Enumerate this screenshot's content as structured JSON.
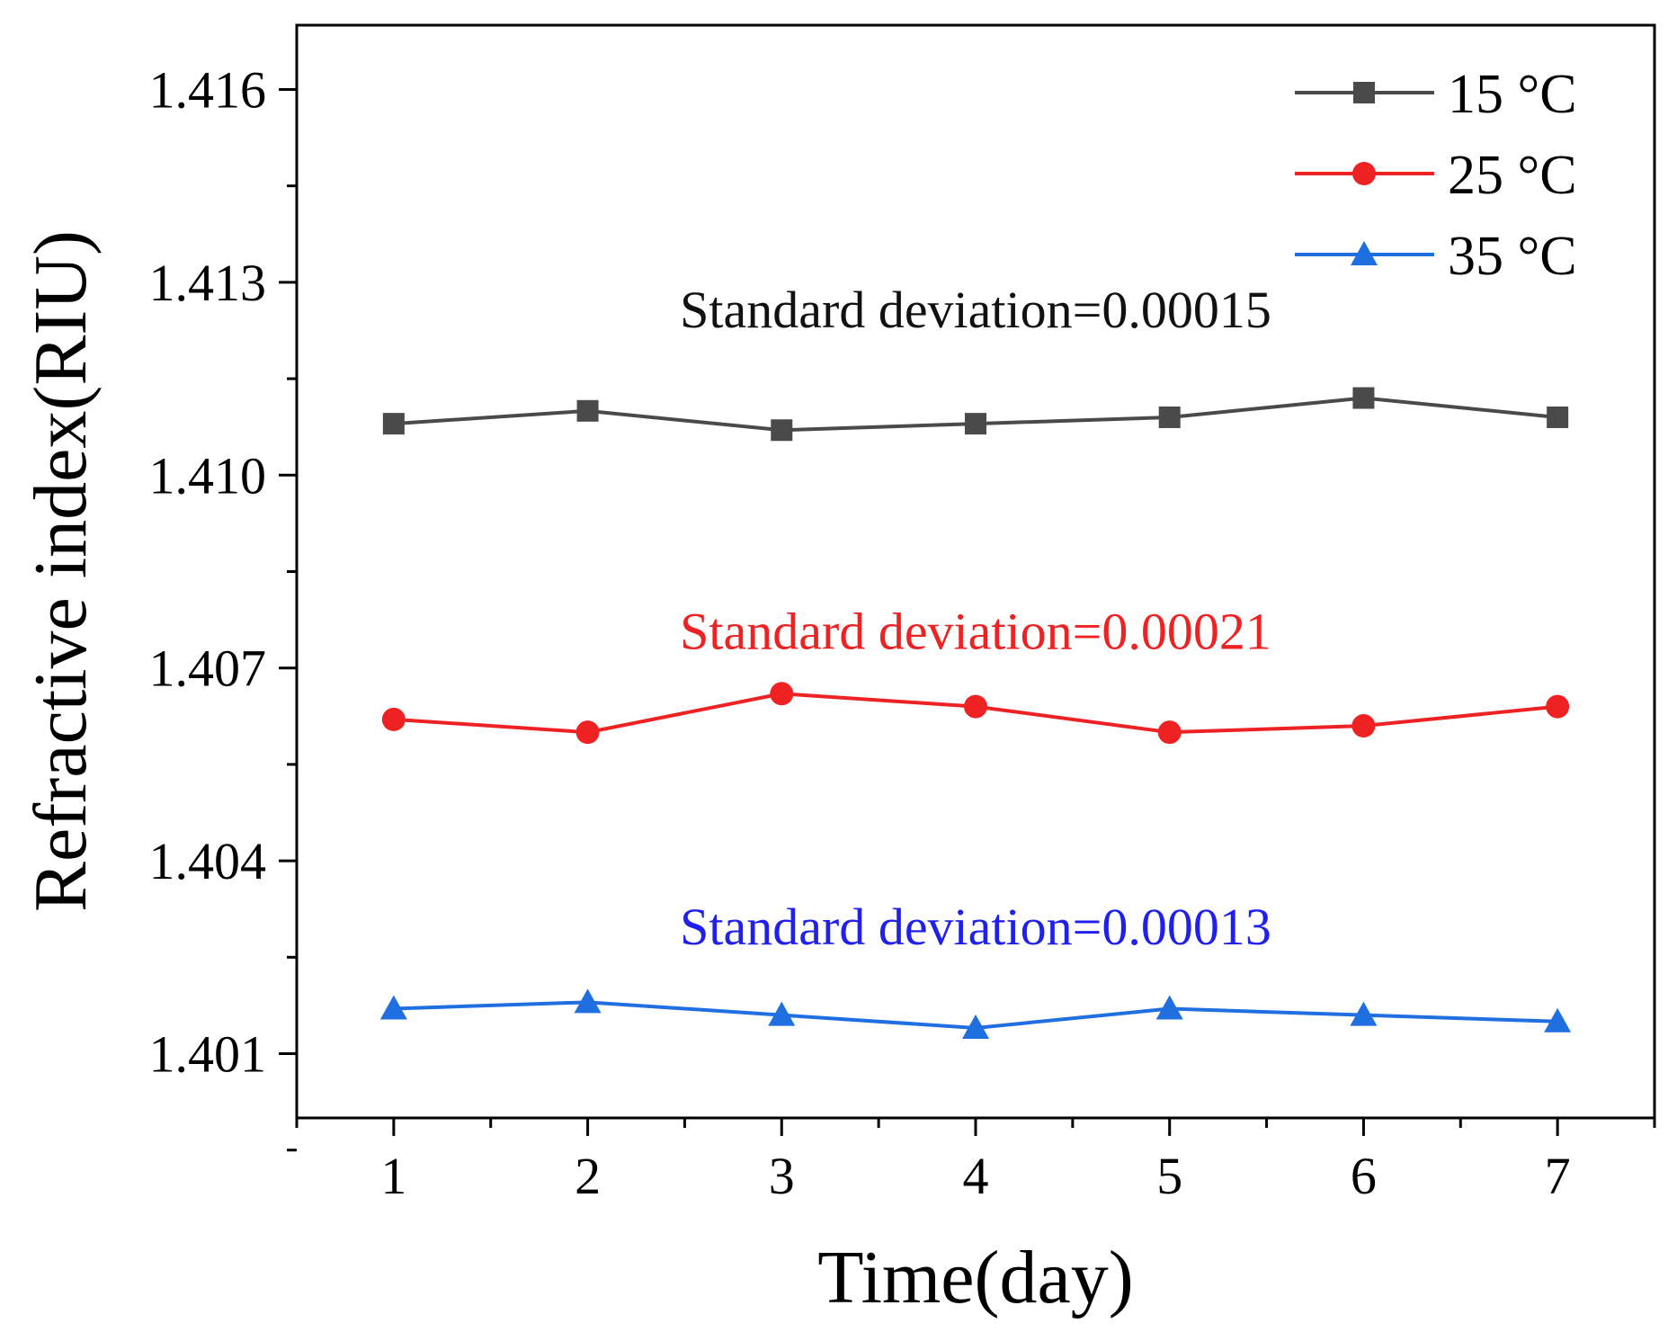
{
  "chart_data": {
    "type": "line",
    "title": "",
    "xlabel": "Time(day)",
    "ylabel": "Refractive index(RIU)",
    "x": [
      1,
      2,
      3,
      4,
      5,
      6,
      7
    ],
    "xlim": [
      0.5,
      7.5
    ],
    "ylim": [
      1.4,
      1.417
    ],
    "xticks": [
      "1",
      "2",
      "3",
      "4",
      "5",
      "6",
      "7"
    ],
    "yticks": [
      "1.401",
      "1.404",
      "1.407",
      "1.410",
      "1.413",
      "1.416"
    ],
    "grid": false,
    "legend_position": "top-right",
    "series": [
      {
        "name": "15 °C",
        "color": "#4a4a4a",
        "marker": "square",
        "values": [
          1.4108,
          1.411,
          1.4107,
          1.4108,
          1.4109,
          1.4112,
          1.4109
        ]
      },
      {
        "name": "25 °C",
        "color": "#ee2222",
        "marker": "circle",
        "values": [
          1.4062,
          1.406,
          1.4066,
          1.4064,
          1.406,
          1.4061,
          1.4064
        ]
      },
      {
        "name": "35 °C",
        "color": "#1f6fe0",
        "marker": "triangle",
        "values": [
          1.4017,
          1.4018,
          1.4016,
          1.4014,
          1.4017,
          1.4016,
          1.4015
        ]
      }
    ],
    "annotations": [
      {
        "text": "Standard deviation=0.00015",
        "color": "#111111",
        "x": 4.0,
        "y": 1.4123
      },
      {
        "text": "Standard deviation=0.00021",
        "color": "#ee2222",
        "x": 4.0,
        "y": 1.4073
      },
      {
        "text": "Standard deviation=0.00013",
        "color": "#1f1fee",
        "x": 4.0,
        "y": 1.4027
      }
    ]
  }
}
